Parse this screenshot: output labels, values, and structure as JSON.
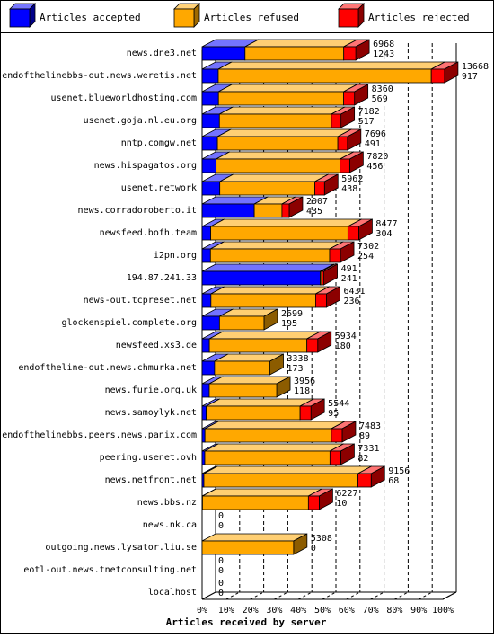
{
  "legend": {
    "accepted": "Articles accepted",
    "refused": "Articles refused",
    "rejected": "Articles rejected"
  },
  "colors": {
    "accepted": "#0000ff",
    "refused": "#ffa800",
    "rejected": "#ff0000"
  },
  "chart_data": {
    "type": "bar",
    "orientation": "horizontal",
    "stacked": true,
    "xlabel": "Articles received by server",
    "xlim": [
      0,
      100
    ],
    "x_ticks": [
      "0%",
      "10%",
      "20%",
      "30%",
      "40%",
      "50%",
      "60%",
      "70%",
      "80%",
      "90%",
      "100%"
    ],
    "grid": "vertical dashed",
    "legend_position": "top",
    "servers": [
      {
        "name": "news.dne3.net",
        "total": 6968,
        "accepted": 1243,
        "refused_pct": 41.0,
        "rejected_pct": 5.0
      },
      {
        "name": "endofthelinebbs-out.news.weretis.net",
        "total": 13668,
        "accepted": 917,
        "refused_pct": 88.5,
        "rejected_pct": 5.5
      },
      {
        "name": "usenet.blueworldhosting.com",
        "total": 8360,
        "accepted": 569,
        "refused_pct": 52.0,
        "rejected_pct": 4.5
      },
      {
        "name": "usenet.goja.nl.eu.org",
        "total": 7182,
        "accepted": 517,
        "refused_pct": 46.5,
        "rejected_pct": 4.0
      },
      {
        "name": "nntp.comgw.net",
        "total": 7696,
        "accepted": 491,
        "refused_pct": 50.0,
        "rejected_pct": 4.0
      },
      {
        "name": "news.hispagatos.org",
        "total": 7820,
        "accepted": 456,
        "refused_pct": 51.5,
        "rejected_pct": 4.0
      },
      {
        "name": "usenet.network",
        "total": 5962,
        "accepted": 438,
        "refused_pct": 39.5,
        "rejected_pct": 4.0
      },
      {
        "name": "news.corradoroberto.it",
        "total": 2007,
        "accepted": 435,
        "refused_pct": 11.5,
        "rejected_pct": 3.0
      },
      {
        "name": "newsfeed.bofh.team",
        "total": 8477,
        "accepted": 304,
        "refused_pct": 57.0,
        "rejected_pct": 4.5
      },
      {
        "name": "i2pn.org",
        "total": 7302,
        "accepted": 254,
        "refused_pct": 49.5,
        "rejected_pct": 4.5
      },
      {
        "name": "194.87.241.33",
        "total": 491,
        "accepted": 241,
        "refused_pct": 0.5,
        "rejected_pct": 1.0
      },
      {
        "name": "news-out.tcpreset.net",
        "total": 6431,
        "accepted": 236,
        "refused_pct": 43.5,
        "rejected_pct": 4.5
      },
      {
        "name": "glockenspiel.complete.org",
        "total": 2699,
        "accepted": 195,
        "refused_pct": 18.5,
        "rejected_pct": 0.0
      },
      {
        "name": "newsfeed.xs3.de",
        "total": 5934,
        "accepted": 180,
        "refused_pct": 40.5,
        "rejected_pct": 4.5
      },
      {
        "name": "endoftheline-out.news.chmurka.net",
        "total": 3338,
        "accepted": 173,
        "refused_pct": 23.0,
        "rejected_pct": 0.0
      },
      {
        "name": "news.furie.org.uk",
        "total": 3956,
        "accepted": 118,
        "refused_pct": 28.0,
        "rejected_pct": 0.0
      },
      {
        "name": "news.samoylyk.net",
        "total": 5544,
        "accepted": 95,
        "refused_pct": 39.0,
        "rejected_pct": 4.5
      },
      {
        "name": "endofthelinebbs.peers.news.panix.com",
        "total": 7483,
        "accepted": 89,
        "refused_pct": 52.5,
        "rejected_pct": 4.5
      },
      {
        "name": "peering.usenet.ovh",
        "total": 7331,
        "accepted": 82,
        "refused_pct": 52.0,
        "rejected_pct": 4.5
      },
      {
        "name": "news.netfront.net",
        "total": 9156,
        "accepted": 68,
        "refused_pct": 64.0,
        "rejected_pct": 5.5
      },
      {
        "name": "news.bbs.nz",
        "total": 6227,
        "accepted": 10,
        "refused_pct": 44.0,
        "rejected_pct": 4.5
      },
      {
        "name": "news.nk.ca",
        "total": 0,
        "accepted": 0,
        "refused_pct": 0,
        "rejected_pct": 0
      },
      {
        "name": "outgoing.news.lysator.liu.se",
        "total": 5308,
        "accepted": 0,
        "refused_pct": 38.0,
        "rejected_pct": 0.0
      },
      {
        "name": "eotl-out.news.tnetconsulting.net",
        "total": 0,
        "accepted": 0,
        "refused_pct": 0,
        "rejected_pct": 0
      },
      {
        "name": "localhost",
        "total": 0,
        "accepted": 0,
        "refused_pct": 0,
        "rejected_pct": 0
      }
    ]
  }
}
